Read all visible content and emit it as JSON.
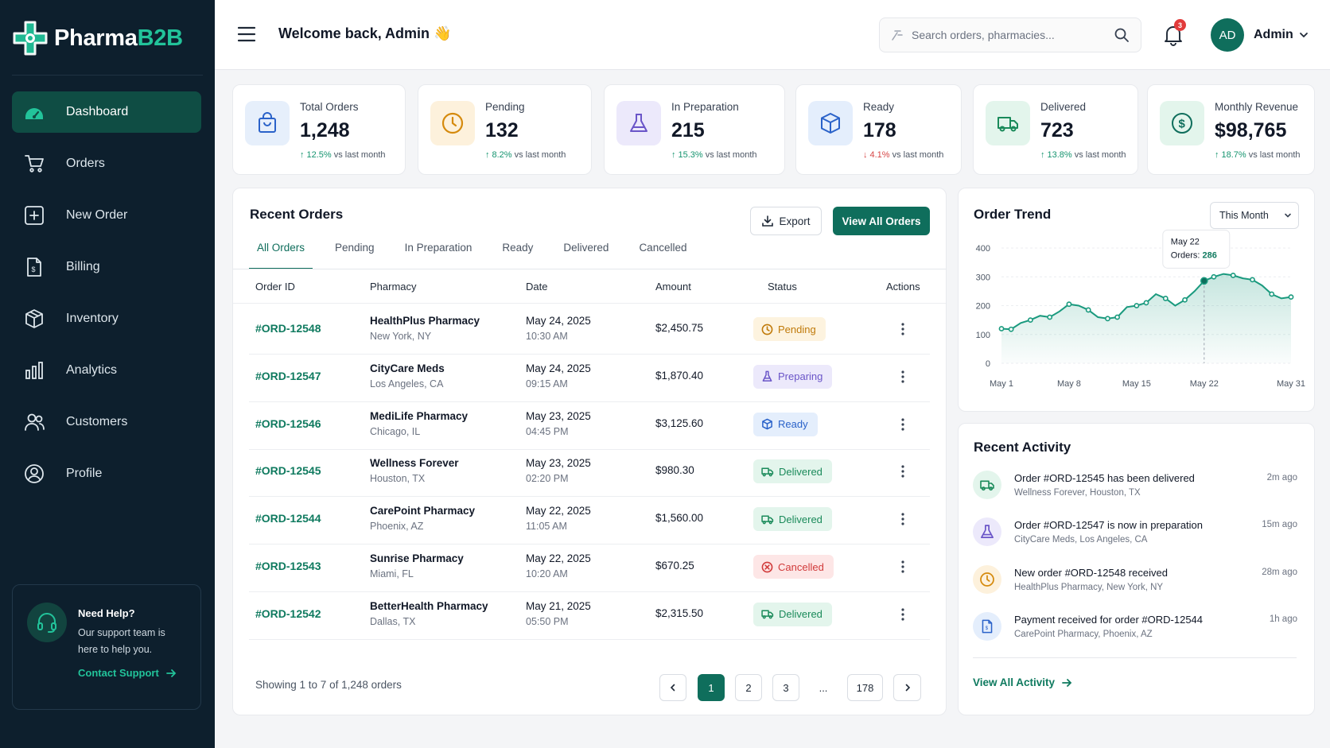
{
  "brand": {
    "name_part1": "Pharma",
    "name_part2": "B2B",
    "accent": "#22c39a",
    "sidebar_bg": "#0d1f2d",
    "primary": "#0f6e5c"
  },
  "sidebar": {
    "items": [
      {
        "label": "Dashboard",
        "icon": "dashboard-gauge-icon",
        "active": true
      },
      {
        "label": "Orders",
        "icon": "cart-icon"
      },
      {
        "label": "New Order",
        "icon": "plus-square-icon"
      },
      {
        "label": "Billing",
        "icon": "invoice-icon"
      },
      {
        "label": "Inventory",
        "icon": "box-icon"
      },
      {
        "label": "Analytics",
        "icon": "bar-chart-icon"
      },
      {
        "label": "Customers",
        "icon": "users-icon"
      },
      {
        "label": "Profile",
        "icon": "user-circle-icon"
      }
    ],
    "help": {
      "title": "Need Help?",
      "description": "Our support team is here to help you.",
      "link": "Contact Support"
    }
  },
  "header": {
    "welcome": "Welcome back, Admin 👋",
    "search_placeholder": "Search orders, pharmacies...",
    "notifications_count": "3",
    "avatar_initials": "AD",
    "user_name": "Admin"
  },
  "stats": [
    {
      "label": "Total Orders",
      "value": "1,248",
      "change": "12.5%",
      "direction": "up",
      "suffix": "vs last month",
      "icon": "shopping-bag-icon"
    },
    {
      "label": "Pending",
      "value": "132",
      "change": "8.2%",
      "direction": "up",
      "suffix": "vs last month",
      "icon": "clock-icon"
    },
    {
      "label": "In Preparation",
      "value": "215",
      "change": "15.3%",
      "direction": "up",
      "suffix": "vs last month",
      "icon": "flask-icon"
    },
    {
      "label": "Ready",
      "value": "178",
      "change": "4.1%",
      "direction": "down",
      "suffix": "vs last month",
      "icon": "package-icon"
    },
    {
      "label": "Delivered",
      "value": "723",
      "change": "13.8%",
      "direction": "up",
      "suffix": "vs last month",
      "icon": "truck-icon"
    },
    {
      "label": "Monthly Revenue",
      "value": "$98,765",
      "change": "18.7%",
      "direction": "up",
      "suffix": "vs last month",
      "icon": "dollar-icon"
    }
  ],
  "orders": {
    "title": "Recent Orders",
    "export_label": "Export",
    "view_all_label": "View All Orders",
    "tabs": [
      "All Orders",
      "Pending",
      "In Preparation",
      "Ready",
      "Delivered",
      "Cancelled"
    ],
    "active_tab": "All Orders",
    "columns": [
      "Order ID",
      "Pharmacy",
      "Date",
      "Amount",
      "Status",
      "Actions"
    ],
    "rows": [
      {
        "id": "#ORD-12548",
        "pharmacy": "HealthPlus Pharmacy",
        "location": "New York, NY",
        "date": "May 24, 2025",
        "time": "10:30 AM",
        "amount": "$2,450.75",
        "status": "Pending",
        "status_type": "pend"
      },
      {
        "id": "#ORD-12547",
        "pharmacy": "CityCare Meds",
        "location": "Los Angeles, CA",
        "date": "May 24, 2025",
        "time": "09:15 AM",
        "amount": "$1,870.40",
        "status": "Preparing",
        "status_type": "prep"
      },
      {
        "id": "#ORD-12546",
        "pharmacy": "MediLife Pharmacy",
        "location": "Chicago, IL",
        "date": "May 23, 2025",
        "time": "04:45 PM",
        "amount": "$3,125.60",
        "status": "Ready",
        "status_type": "ready"
      },
      {
        "id": "#ORD-12545",
        "pharmacy": "Wellness Forever",
        "location": "Houston, TX",
        "date": "May 23, 2025",
        "time": "02:20 PM",
        "amount": "$980.30",
        "status": "Delivered",
        "status_type": "del"
      },
      {
        "id": "#ORD-12544",
        "pharmacy": "CarePoint Pharmacy",
        "location": "Phoenix, AZ",
        "date": "May 22, 2025",
        "time": "11:05 AM",
        "amount": "$1,560.00",
        "status": "Delivered",
        "status_type": "del"
      },
      {
        "id": "#ORD-12543",
        "pharmacy": "Sunrise Pharmacy",
        "location": "Miami, FL",
        "date": "May 22, 2025",
        "time": "10:20 AM",
        "amount": "$670.25",
        "status": "Cancelled",
        "status_type": "can"
      },
      {
        "id": "#ORD-12542",
        "pharmacy": "BetterHealth Pharmacy",
        "location": "Dallas, TX",
        "date": "May 21, 2025",
        "time": "05:50 PM",
        "amount": "$2,315.50",
        "status": "Delivered",
        "status_type": "del"
      }
    ],
    "showing": "Showing 1 to 7 of 1,248 orders",
    "pages": [
      "1",
      "2",
      "3",
      "...",
      "178"
    ],
    "current_page": "1"
  },
  "trend": {
    "title": "Order Trend",
    "range": "This Month",
    "tooltip": {
      "date": "May 22",
      "label": "Orders:",
      "value": "286"
    }
  },
  "chart_data": {
    "type": "area",
    "x": [
      1,
      2,
      3,
      4,
      5,
      6,
      7,
      8,
      9,
      10,
      11,
      12,
      13,
      14,
      15,
      16,
      17,
      18,
      19,
      20,
      21,
      22,
      23,
      24,
      25,
      26,
      27,
      28,
      29,
      30,
      31
    ],
    "series": [
      {
        "values": [
          120,
          118,
          140,
          150,
          165,
          160,
          180,
          205,
          200,
          185,
          160,
          155,
          160,
          195,
          200,
          210,
          240,
          225,
          200,
          220,
          250,
          286,
          300,
          310,
          305,
          295,
          290,
          270,
          240,
          225,
          230
        ]
      }
    ],
    "xticks": [
      "May 1",
      "May 8",
      "May 15",
      "May 22",
      "May 31"
    ],
    "yticks": [
      0,
      100,
      200,
      300,
      400
    ],
    "ylim": [
      0,
      400
    ],
    "grid": true,
    "color": "#1a9a7e"
  },
  "activity": {
    "title": "Recent Activity",
    "items": [
      {
        "text": "Order #ORD-12545 has been delivered",
        "sub": "Wellness Forever, Houston, TX",
        "time": "2m ago",
        "icon": "truck-icon"
      },
      {
        "text": "Order #ORD-12547 is now in preparation",
        "sub": "CityCare Meds, Los Angeles, CA",
        "time": "15m ago",
        "icon": "flask-icon"
      },
      {
        "text": "New order #ORD-12548 received",
        "sub": "HealthPlus Pharmacy, New York, NY",
        "time": "28m ago",
        "icon": "clock-icon"
      },
      {
        "text": "Payment received for order #ORD-12544",
        "sub": "CarePoint Pharmacy, Phoenix, AZ",
        "time": "1h ago",
        "icon": "invoice-icon"
      }
    ],
    "view_all": "View All Activity"
  }
}
